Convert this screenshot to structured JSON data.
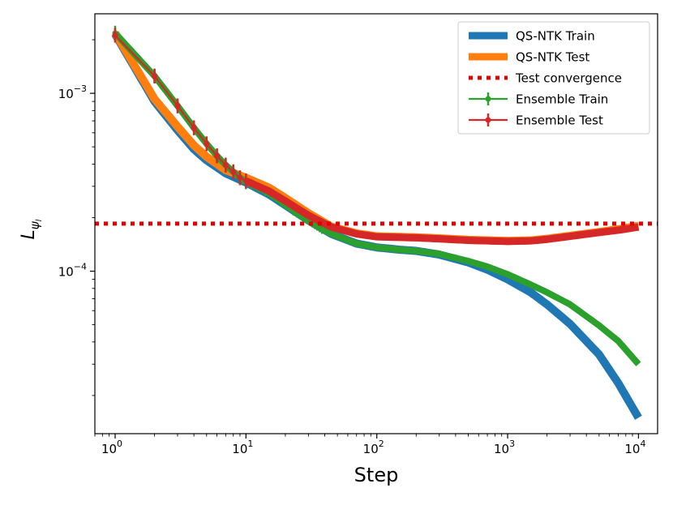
{
  "chart_data": {
    "type": "line",
    "xlabel": "Step",
    "ylabel": "L",
    "ylabel_subscript": "ψ",
    "ylabel_subsubscript": "l",
    "x_scale": "log",
    "y_scale": "log",
    "xlim": [
      0.7,
      14000
    ],
    "ylim": [
      1.22e-05,
      0.0028
    ],
    "x_ticks": [
      {
        "value": 1,
        "base": "10",
        "exp": "0"
      },
      {
        "value": 10,
        "base": "10",
        "exp": "1"
      },
      {
        "value": 100,
        "base": "10",
        "exp": "2"
      },
      {
        "value": 1000,
        "base": "10",
        "exp": "3"
      },
      {
        "value": 10000,
        "base": "10",
        "exp": "4"
      }
    ],
    "y_ticks": [
      {
        "value": 0.0001,
        "base": "10",
        "exp": "−4"
      },
      {
        "value": 0.001,
        "base": "10",
        "exp": "−3"
      }
    ],
    "legend": {
      "position": "top-right",
      "entries": [
        "QS-NTK Train",
        "QS-NTK Test",
        "Test convergence",
        "Ensemble Train",
        "Ensemble Test"
      ]
    },
    "series": [
      {
        "name": "QS-NTK Train",
        "color": "#1f77b4",
        "style": "thick-line",
        "points": [
          [
            1,
            0.00215
          ],
          [
            2,
            0.0009
          ],
          [
            3,
            0.00062
          ],
          [
            4,
            0.000485
          ],
          [
            5,
            0.00042
          ],
          [
            7,
            0.000355
          ],
          [
            10,
            0.000315
          ],
          [
            15,
            0.00027
          ],
          [
            20,
            0.000235
          ],
          [
            30,
            0.000193
          ],
          [
            45,
            0.000162
          ],
          [
            70,
            0.000143
          ],
          [
            100,
            0.000136
          ],
          [
            150,
            0.000132
          ],
          [
            200,
            0.00013
          ],
          [
            300,
            0.000124
          ],
          [
            500,
            0.000112
          ],
          [
            700,
            0.000102
          ],
          [
            1000,
            9e-05
          ],
          [
            1500,
            7.6e-05
          ],
          [
            2000,
            6.5e-05
          ],
          [
            3000,
            5.05e-05
          ],
          [
            5000,
            3.4e-05
          ],
          [
            7000,
            2.35e-05
          ],
          [
            10000,
            1.5e-05
          ]
        ]
      },
      {
        "name": "QS-NTK Test",
        "color": "#ff7f0e",
        "style": "thick-line",
        "points": [
          [
            1,
            0.00218
          ],
          [
            2,
            0.00093
          ],
          [
            3,
            0.00065
          ],
          [
            4,
            0.00051
          ],
          [
            5,
            0.00044
          ],
          [
            7,
            0.00037
          ],
          [
            10,
            0.000335
          ],
          [
            15,
            0.000295
          ],
          [
            20,
            0.000258
          ],
          [
            30,
            0.000212
          ],
          [
            45,
            0.000178
          ],
          [
            70,
            0.000163
          ],
          [
            100,
            0.000157
          ],
          [
            200,
            0.000155
          ],
          [
            300,
            0.000153
          ],
          [
            500,
            0.00015
          ],
          [
            1000,
            0.000148
          ],
          [
            1500,
            0.000149
          ],
          [
            2000,
            0.000152
          ],
          [
            3000,
            0.000158
          ],
          [
            5000,
            0.000166
          ],
          [
            7000,
            0.000172
          ],
          [
            10000,
            0.00018
          ]
        ]
      },
      {
        "name": "Test convergence",
        "color": "#e50000",
        "style": "dotted-hline",
        "value": 0.000185
      },
      {
        "name": "Ensemble Train",
        "color": "#2ca02c",
        "style": "thick-line-with-errorbars",
        "points": [
          [
            1,
            0.00218
          ],
          [
            2,
            0.00125
          ],
          [
            3,
            0.00085
          ],
          [
            4,
            0.00064
          ],
          [
            5,
            0.00052
          ],
          [
            6,
            0.000445
          ],
          [
            7,
            0.000395
          ],
          [
            8,
            0.000362
          ],
          [
            9,
            0.000335
          ],
          [
            10,
            0.000318
          ],
          [
            12,
            0.000298
          ],
          [
            15,
            0.000275
          ],
          [
            20,
            0.000237
          ],
          [
            30,
            0.000192
          ],
          [
            45,
            0.000162
          ],
          [
            70,
            0.000143
          ],
          [
            100,
            0.000136
          ],
          [
            150,
            0.000132
          ],
          [
            200,
            0.00013
          ],
          [
            300,
            0.000125
          ],
          [
            500,
            0.000114
          ],
          [
            700,
            0.000106
          ],
          [
            1000,
            9.6e-05
          ],
          [
            1500,
            8.4e-05
          ],
          [
            2000,
            7.6e-05
          ],
          [
            3000,
            6.5e-05
          ],
          [
            5000,
            4.95e-05
          ],
          [
            7000,
            4.05e-05
          ],
          [
            10000,
            3e-05
          ]
        ]
      },
      {
        "name": "Ensemble Test",
        "color": "#d62728",
        "style": "thick-line-with-errorbars",
        "points": [
          [
            1,
            0.00212
          ],
          [
            2,
            0.00125
          ],
          [
            3,
            0.00085
          ],
          [
            4,
            0.00064
          ],
          [
            5,
            0.00052
          ],
          [
            6,
            0.000445
          ],
          [
            7,
            0.000395
          ],
          [
            8,
            0.000362
          ],
          [
            9,
            0.000335
          ],
          [
            10,
            0.000322
          ],
          [
            12,
            0.000303
          ],
          [
            15,
            0.000282
          ],
          [
            20,
            0.000248
          ],
          [
            30,
            0.000206
          ],
          [
            45,
            0.000177
          ],
          [
            70,
            0.000162
          ],
          [
            100,
            0.000156
          ],
          [
            200,
            0.000154
          ],
          [
            300,
            0.000152
          ],
          [
            500,
            0.000149
          ],
          [
            1000,
            0.000147
          ],
          [
            1500,
            0.000148
          ],
          [
            2000,
            0.000151
          ],
          [
            3000,
            0.000157
          ],
          [
            5000,
            0.000165
          ],
          [
            7000,
            0.00017
          ],
          [
            10000,
            0.000177
          ]
        ]
      }
    ]
  }
}
